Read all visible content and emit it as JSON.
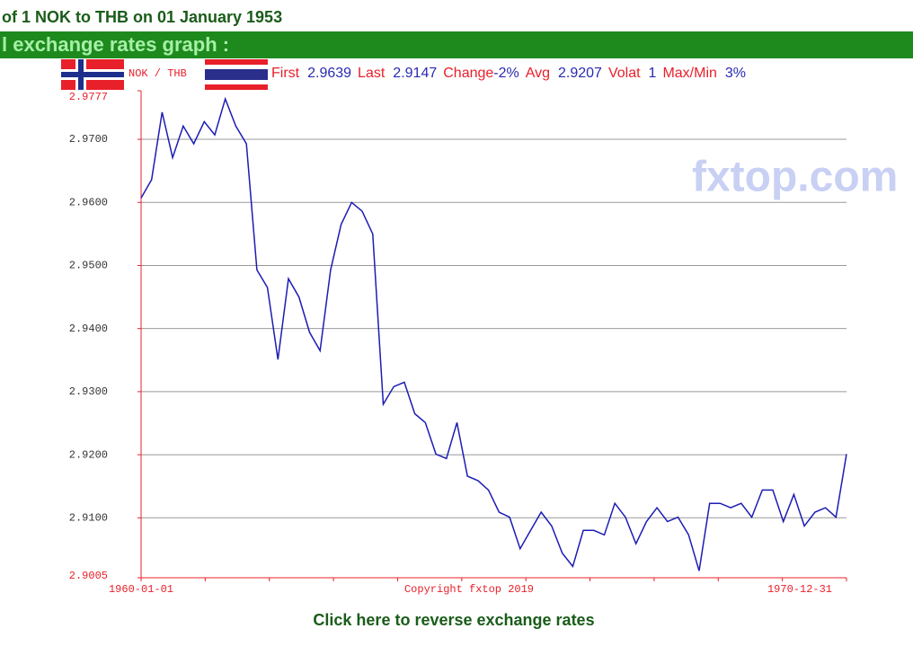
{
  "header": {
    "title": "of 1 NOK to THB on 01 January 1953"
  },
  "banner": {
    "title": "l exchange rates graph :"
  },
  "chart_data": {
    "type": "line",
    "pair": "NOK / THB",
    "stats": [
      {
        "label": "First",
        "value": "2.9639"
      },
      {
        "label": "Last",
        "value": "2.9147"
      },
      {
        "label": "Change",
        "value": "-2%"
      },
      {
        "label": "Avg",
        "value": "2.9207"
      },
      {
        "label": "Volat",
        "value": "1"
      },
      {
        "label": "Max/Min",
        "value": "3%"
      }
    ],
    "x_labels": [
      "1960-01-01",
      "1970-12-31"
    ],
    "copyright": "Copyright fxtop 2019",
    "watermark": "fxtop.com",
    "ylim": [
      2.9005,
      2.9777
    ],
    "yticks": [
      2.9005,
      {
        "value": 2.91,
        "label": "2.9100"
      },
      {
        "value": 2.92,
        "label": "2.9200"
      },
      {
        "value": 2.93,
        "label": "2.9300"
      },
      {
        "value": 2.94,
        "label": "2.9400"
      },
      {
        "value": 2.95,
        "label": "2.9500"
      },
      {
        "value": 2.96,
        "label": "2.9600"
      },
      {
        "value": 2.97,
        "label": "2.9700"
      },
      2.9777
    ],
    "grid": true,
    "series": [
      {
        "color": "#1c1cb4",
        "values": [
          2.9607,
          2.9636,
          2.9743,
          2.9671,
          2.9721,
          2.9693,
          2.9728,
          2.9707,
          2.9764,
          2.9721,
          2.9693,
          2.9493,
          2.9465,
          2.9351,
          2.9479,
          2.945,
          2.9394,
          2.9365,
          2.9493,
          2.9565,
          2.96,
          2.9586,
          2.955,
          2.928,
          2.9308,
          2.9315,
          2.9265,
          2.9251,
          2.9201,
          2.9194,
          2.9251,
          2.9166,
          2.9159,
          2.9144,
          2.9109,
          2.9101,
          2.9051,
          2.908,
          2.9109,
          2.9087,
          2.9044,
          2.9023,
          2.908,
          2.908,
          2.9073,
          2.9123,
          2.9101,
          2.9059,
          2.9094,
          2.9116,
          2.9094,
          2.9101,
          2.9073,
          2.9016,
          2.9123,
          2.9123,
          2.9116,
          2.9123,
          2.9101,
          2.9144,
          2.9144,
          2.9094,
          2.9137,
          2.9087,
          2.9109,
          2.9116,
          2.9101,
          2.9201
        ]
      }
    ]
  },
  "link": {
    "text": "Click here to reverse exchange rates"
  }
}
